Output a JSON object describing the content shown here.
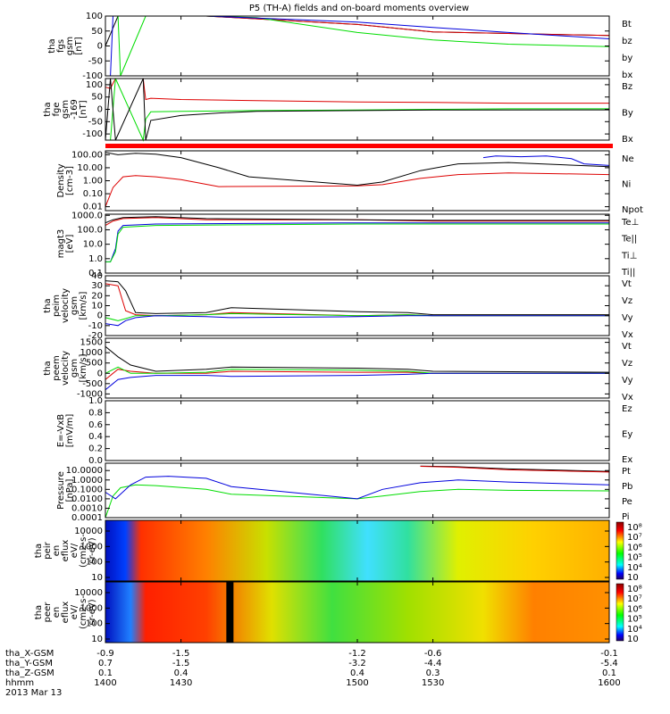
{
  "title": "P5 (TH-A) fields and on-board moments overview",
  "time_labels": [
    "1400",
    "1430",
    "1500",
    "1530",
    "1600"
  ],
  "footer": {
    "row_labels": [
      "tha_X-GSM",
      "tha_Y-GSM",
      "tha_Z-GSM",
      "hhmm",
      "2013 Mar 13"
    ],
    "x_gsm": [
      "-0.9",
      "-1.5",
      "-1.2",
      "-0.6",
      "-0.1"
    ],
    "y_gsm": [
      "0.7",
      "-1.5",
      "-3.2",
      "-4.4",
      "-5.4"
    ],
    "z_gsm": [
      "0.1",
      "0.4",
      "0.4",
      "0.3",
      "0.1"
    ],
    "hhmm": [
      "1400",
      "1430",
      "1500",
      "1530",
      "1600"
    ]
  },
  "colors": {
    "black": "#000000",
    "red": "#dd0000",
    "green": "#00dd00",
    "blue": "#0000dd"
  },
  "chart_data": [
    {
      "type": "line",
      "ylabel": [
        "tha",
        "fgs",
        "gsm",
        "[nT]"
      ],
      "yticks": [
        "100",
        "50",
        "0",
        "-50",
        "-100"
      ],
      "ylim": [
        -100,
        100
      ],
      "legend": [
        "Bt",
        "bz",
        "by",
        "bx"
      ],
      "series": [
        {
          "name": "Bt",
          "x": [
            1400,
            1405,
            1406,
            1415,
            1416,
            1440,
            1500,
            1530,
            1600
          ],
          "values": [
            0,
            100,
            100,
            100,
            100,
            100,
            72,
            47,
            35
          ]
        },
        {
          "name": "bz",
          "x": [
            1416,
            1440,
            1500,
            1530,
            1600
          ],
          "values": [
            100,
            100,
            72,
            47,
            35
          ]
        },
        {
          "name": "by",
          "x": [
            1405,
            1406,
            1416,
            1418,
            1440,
            1460,
            1480,
            1500,
            1530,
            1560,
            1600
          ],
          "values": [
            100,
            -100,
            100,
            100,
            100,
            95,
            70,
            45,
            20,
            6,
            -2
          ]
        },
        {
          "name": "bx",
          "x": [
            1402,
            1403,
            1416,
            1440,
            1500,
            1530,
            1560,
            1600
          ],
          "values": [
            -100,
            100,
            100,
            100,
            80,
            62,
            45,
            24
          ]
        }
      ]
    },
    {
      "type": "line",
      "ylabel": [
        "tha",
        "fge",
        "gsm",
        "-169",
        "[nT]"
      ],
      "yticks": [
        "100",
        "50",
        "0",
        "-50",
        "-100"
      ],
      "ylim": [
        -125,
        125
      ],
      "legend": [
        "Bz",
        "By",
        "Bx"
      ],
      "series": [
        {
          "name": "Bz",
          "x": [
            1400,
            1402,
            1404,
            1415,
            1416,
            1418,
            1430,
            1460,
            1500,
            1530,
            1560,
            1600
          ],
          "values": [
            90,
            85,
            125,
            125,
            40,
            45,
            40,
            35,
            30,
            28,
            25,
            25
          ]
        },
        {
          "name": "By",
          "x": [
            1400,
            1402,
            1404,
            1415,
            1416,
            1418,
            1430,
            1460,
            1500,
            1530,
            1560,
            1600
          ],
          "values": [
            -125,
            -125,
            125,
            -125,
            -40,
            -10,
            -8,
            -5,
            -3,
            0,
            2,
            2
          ]
        },
        {
          "name": "Bx",
          "x": [
            1400,
            1402,
            1404,
            1415,
            1416,
            1418,
            1430,
            1445,
            1460,
            1500,
            1530,
            1600
          ],
          "values": [
            -125,
            125,
            -125,
            125,
            -125,
            -45,
            -25,
            -15,
            -8,
            -5,
            -3,
            -2
          ]
        }
      ]
    },
    {
      "type": "line",
      "ylabel": [
        "Density",
        "[cm-3]"
      ],
      "log": true,
      "yticks": [
        "100.00",
        "10.00",
        "1.00",
        "0.10",
        "0.01"
      ],
      "ylim": [
        0.005,
        200
      ],
      "legend": [
        "Ne",
        "Ni",
        "Npot"
      ],
      "series": [
        {
          "name": "Ne",
          "x": [
            1400,
            1403,
            1407,
            1412,
            1420,
            1430,
            1445,
            1500,
            1510,
            1525,
            1540,
            1560,
            1600
          ],
          "values": [
            0.01,
            0.3,
            2,
            2.5,
            2,
            1.2,
            0.35,
            0.4,
            0.5,
            1.5,
            3,
            4,
            3
          ]
        },
        {
          "name": "Ni",
          "x": [
            1400,
            1405,
            1412,
            1420,
            1430,
            1445,
            1457,
            1500,
            1510,
            1525,
            1540,
            1560,
            1600
          ],
          "values": [
            150,
            100,
            130,
            110,
            60,
            10,
            2,
            0.45,
            0.8,
            6,
            20,
            25,
            12
          ]
        },
        {
          "name": "Npot",
          "x": [
            1550,
            1555,
            1565,
            1575,
            1585,
            1590,
            1600
          ],
          "values": [
            60,
            80,
            70,
            80,
            50,
            20,
            15
          ]
        }
      ]
    },
    {
      "type": "line",
      "ylabel": [
        "magt3",
        "[eV]"
      ],
      "log": true,
      "yticks": [
        "1000.0",
        "100.0",
        "10.0",
        "1.0",
        "0.1"
      ],
      "ylim": [
        0.1,
        1200
      ],
      "legend": [
        "Te⊥",
        "Te||",
        "Ti⊥",
        "Ti||"
      ],
      "series": [
        {
          "name": "Te⊥",
          "x": [
            1400,
            1403,
            1407,
            1420,
            1440,
            1500,
            1530,
            1600
          ],
          "values": [
            200,
            400,
            600,
            700,
            500,
            500,
            400,
            400
          ]
        },
        {
          "name": "Te||",
          "x": [
            1400,
            1403,
            1407,
            1420,
            1440,
            1500,
            1530,
            1600
          ],
          "values": [
            300,
            500,
            700,
            800,
            600,
            500,
            450,
            450
          ]
        },
        {
          "name": "Ti⊥",
          "x": [
            1400,
            1402,
            1404,
            1405,
            1407,
            1420,
            1500,
            1530,
            1600
          ],
          "values": [
            0.6,
            0.6,
            5,
            80,
            200,
            250,
            300,
            300,
            300
          ]
        },
        {
          "name": "Ti||",
          "x": [
            1400,
            1402,
            1404,
            1405,
            1407,
            1420,
            1500,
            1530,
            1600
          ],
          "values": [
            0.6,
            0.6,
            3,
            50,
            150,
            200,
            250,
            250,
            250
          ]
        }
      ]
    },
    {
      "type": "line",
      "ylabel": [
        "tha",
        "peim",
        "velocity",
        "gsm",
        "[km/s]"
      ],
      "yticks": [
        "40",
        "30",
        "20",
        "10",
        "0",
        "-10",
        "-20"
      ],
      "ylim": [
        -20,
        40
      ],
      "legend": [
        "Vt",
        "Vz",
        "Vy",
        "Vx"
      ],
      "series": [
        {
          "name": "Vt",
          "x": [
            1400,
            1405,
            1408,
            1412,
            1420,
            1440,
            1450,
            1500,
            1520,
            1530,
            1600
          ],
          "values": [
            35,
            34,
            25,
            3,
            2,
            3,
            8,
            4,
            3,
            1,
            1
          ]
        },
        {
          "name": "Vz",
          "x": [
            1400,
            1405,
            1408,
            1412,
            1420,
            1440,
            1450,
            1500,
            1520,
            1530,
            1600
          ],
          "values": [
            32,
            30,
            5,
            1,
            0,
            1,
            3,
            0,
            1,
            0,
            0
          ]
        },
        {
          "name": "Vy",
          "x": [
            1400,
            1405,
            1408,
            1412,
            1420,
            1440,
            1450,
            1500,
            1520,
            1530,
            1600
          ],
          "values": [
            -2,
            -5,
            -3,
            0,
            0,
            1,
            2,
            0,
            1,
            0,
            0
          ]
        },
        {
          "name": "Vx",
          "x": [
            1400,
            1405,
            1408,
            1412,
            1420,
            1440,
            1450,
            1500,
            1520,
            1530,
            1600
          ],
          "values": [
            -8,
            -10,
            -5,
            -2,
            0,
            -1,
            -2,
            -1,
            0,
            0,
            0
          ]
        }
      ]
    },
    {
      "type": "line",
      "ylabel": [
        "tha",
        "peem",
        "velocity",
        "gsm",
        "[km/s]"
      ],
      "yticks": [
        "1500",
        "1000",
        "500",
        "0",
        "-500",
        "-1000"
      ],
      "ylim": [
        -1200,
        1700
      ],
      "legend": [
        "Vt",
        "Vz",
        "Vy",
        "Vx"
      ],
      "series": [
        {
          "name": "Vt",
          "x": [
            1400,
            1405,
            1410,
            1420,
            1440,
            1450,
            1500,
            1520,
            1530,
            1600
          ],
          "values": [
            1300,
            800,
            400,
            100,
            200,
            300,
            250,
            200,
            100,
            50
          ]
        },
        {
          "name": "Vz",
          "x": [
            1400,
            1405,
            1410,
            1420,
            1440,
            1450,
            1500,
            1520,
            1530,
            1600
          ],
          "values": [
            -300,
            200,
            100,
            0,
            0,
            100,
            50,
            50,
            0,
            0
          ]
        },
        {
          "name": "Vy",
          "x": [
            1400,
            1405,
            1410,
            1420,
            1440,
            1450,
            1500,
            1520,
            1530,
            1600
          ],
          "values": [
            0,
            300,
            0,
            0,
            50,
            200,
            150,
            100,
            0,
            0
          ]
        },
        {
          "name": "Vx",
          "x": [
            1400,
            1405,
            1410,
            1420,
            1440,
            1450,
            1500,
            1520,
            1530,
            1600
          ],
          "values": [
            -800,
            -300,
            -200,
            -100,
            -100,
            -150,
            -100,
            -50,
            0,
            0
          ]
        }
      ]
    },
    {
      "type": "line",
      "ylabel": [
        "E=-VxB",
        "[mV/m]"
      ],
      "yticks": [
        "1.0",
        "0.8",
        "0.6",
        "0.4",
        "0.2",
        "0.0"
      ],
      "ylim": [
        0,
        1
      ],
      "legend": [
        "Ez",
        "Ey",
        "Ex"
      ],
      "series": []
    },
    {
      "type": "line",
      "ylabel": [
        "Pressure",
        "[nPa]"
      ],
      "log": true,
      "yticks": [
        "10.0000",
        "1.0000",
        "0.1000",
        "0.0100",
        "0.0010",
        "0.0001"
      ],
      "ylim": [
        0.0001,
        60
      ],
      "legend": [
        "Pt",
        "Pb",
        "Pe",
        "Pi"
      ],
      "series": [
        {
          "name": "Pt",
          "x": [
            1525,
            1540,
            1560,
            1600
          ],
          "values": [
            30,
            25,
            15,
            8
          ]
        },
        {
          "name": "Pb",
          "x": [
            1525,
            1540,
            1560,
            1600
          ],
          "values": [
            28,
            22,
            12,
            7
          ]
        },
        {
          "name": "Pe",
          "x": [
            1400,
            1403,
            1406,
            1412,
            1420,
            1440,
            1450,
            1500,
            1510,
            1525,
            1540,
            1560,
            1600
          ],
          "values": [
            0.0001,
            0.02,
            0.15,
            0.3,
            0.25,
            0.1,
            0.03,
            0.01,
            0.02,
            0.06,
            0.1,
            0.08,
            0.07
          ]
        },
        {
          "name": "Pi",
          "x": [
            1400,
            1404,
            1410,
            1416,
            1425,
            1440,
            1450,
            1500,
            1510,
            1525,
            1540,
            1560,
            1600
          ],
          "values": [
            0.05,
            0.01,
            0.3,
            2,
            2.5,
            1.5,
            0.2,
            0.01,
            0.1,
            0.5,
            1,
            0.6,
            0.3
          ]
        }
      ]
    },
    {
      "type": "heatmap",
      "ylabel": [
        "tha",
        "peir",
        "en",
        "eflux",
        "eV/",
        "(cm2-s-",
        "sr-eV)"
      ],
      "yticks": [
        "10000",
        "1000",
        "100",
        "10"
      ],
      "colorbar": [
        "10⁸",
        "10⁷",
        "10⁶",
        "10⁵",
        "10⁴",
        "10⁳"
      ]
    },
    {
      "type": "heatmap",
      "ylabel": [
        "tha",
        "peer",
        "en",
        "eflux",
        "eV/",
        "(cm2-s-",
        "sr-eV)"
      ],
      "yticks": [
        "10000",
        "1000",
        "100",
        "10"
      ],
      "colorbar": [
        "10⁸",
        "10⁷",
        "10⁶",
        "10⁵",
        "10⁴",
        "10⁳"
      ]
    }
  ]
}
